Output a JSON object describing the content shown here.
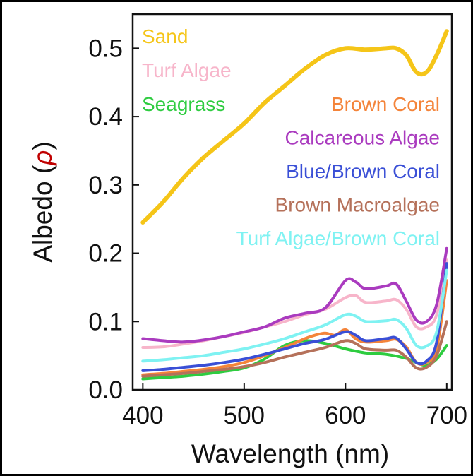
{
  "chart_data": {
    "type": "line",
    "xlabel": "Wavelength (nm)",
    "ylabel_prefix": "Albedo (",
    "ylabel_symbol": "ρ",
    "ylabel_suffix": ")",
    "ylabel_symbol_color": "#c00000",
    "xlim": [
      390,
      705
    ],
    "ylim": [
      0,
      0.55
    ],
    "xticks": [
      400,
      500,
      600,
      700
    ],
    "yticks": [
      0.0,
      0.1,
      0.2,
      0.3,
      0.4,
      0.5
    ],
    "ytick_labels": [
      "0.0",
      "0.1",
      "0.2",
      "0.3",
      "0.4",
      "0.5"
    ],
    "legend_position": "top",
    "grid": false,
    "series": [
      {
        "name": "Sand",
        "color": "#f5c518",
        "x": [
          400,
          420,
          440,
          460,
          480,
          500,
          520,
          540,
          560,
          580,
          600,
          620,
          640,
          650,
          660,
          670,
          680,
          690,
          700
        ],
        "y": [
          0.245,
          0.275,
          0.31,
          0.34,
          0.365,
          0.39,
          0.42,
          0.445,
          0.47,
          0.49,
          0.5,
          0.498,
          0.5,
          0.5,
          0.49,
          0.465,
          0.465,
          0.49,
          0.525
        ]
      },
      {
        "name": "Turf Algae",
        "color": "#f7b5ca",
        "x": [
          400,
          420,
          440,
          460,
          480,
          500,
          520,
          540,
          560,
          580,
          600,
          610,
          620,
          640,
          650,
          660,
          670,
          680,
          690,
          700
        ],
        "y": [
          0.062,
          0.063,
          0.067,
          0.072,
          0.078,
          0.084,
          0.092,
          0.1,
          0.11,
          0.118,
          0.135,
          0.138,
          0.128,
          0.13,
          0.132,
          0.118,
          0.092,
          0.092,
          0.11,
          0.19
        ]
      },
      {
        "name": "Seagrass",
        "color": "#2ecc40",
        "x": [
          400,
          420,
          440,
          460,
          480,
          500,
          520,
          540,
          560,
          580,
          600,
          620,
          640,
          660,
          670,
          680,
          690,
          700
        ],
        "y": [
          0.016,
          0.018,
          0.02,
          0.023,
          0.027,
          0.032,
          0.045,
          0.065,
          0.072,
          0.068,
          0.06,
          0.054,
          0.052,
          0.046,
          0.04,
          0.036,
          0.045,
          0.065
        ]
      },
      {
        "name": "Brown Coral",
        "color": "#f4843a",
        "x": [
          400,
          420,
          440,
          460,
          480,
          500,
          520,
          540,
          560,
          570,
          580,
          590,
          600,
          610,
          620,
          640,
          650,
          660,
          670,
          680,
          690,
          700
        ],
        "y": [
          0.022,
          0.024,
          0.027,
          0.03,
          0.034,
          0.04,
          0.05,
          0.062,
          0.075,
          0.08,
          0.083,
          0.08,
          0.088,
          0.075,
          0.07,
          0.072,
          0.074,
          0.063,
          0.04,
          0.04,
          0.06,
          0.16
        ]
      },
      {
        "name": "Calcareous Algae",
        "color": "#aa3bbf",
        "x": [
          400,
          420,
          440,
          460,
          480,
          500,
          520,
          540,
          560,
          580,
          600,
          610,
          620,
          640,
          650,
          660,
          670,
          680,
          690,
          700
        ],
        "y": [
          0.075,
          0.072,
          0.07,
          0.073,
          0.078,
          0.085,
          0.092,
          0.105,
          0.112,
          0.12,
          0.16,
          0.158,
          0.148,
          0.152,
          0.155,
          0.13,
          0.102,
          0.1,
          0.125,
          0.207
        ]
      },
      {
        "name": "Blue/Brown Coral",
        "color": "#3a4fd6",
        "x": [
          400,
          420,
          440,
          460,
          480,
          500,
          520,
          540,
          560,
          580,
          600,
          610,
          620,
          640,
          650,
          660,
          670,
          680,
          690,
          700
        ],
        "y": [
          0.028,
          0.03,
          0.033,
          0.036,
          0.04,
          0.045,
          0.052,
          0.06,
          0.068,
          0.074,
          0.085,
          0.08,
          0.072,
          0.075,
          0.076,
          0.06,
          0.04,
          0.042,
          0.07,
          0.185
        ]
      },
      {
        "name": "Brown Macroalgae",
        "color": "#b5715a",
        "x": [
          400,
          420,
          440,
          460,
          480,
          500,
          520,
          540,
          560,
          580,
          600,
          610,
          620,
          640,
          650,
          660,
          670,
          680,
          690,
          700
        ],
        "y": [
          0.02,
          0.022,
          0.024,
          0.027,
          0.03,
          0.034,
          0.04,
          0.048,
          0.055,
          0.062,
          0.072,
          0.068,
          0.06,
          0.058,
          0.058,
          0.048,
          0.032,
          0.033,
          0.05,
          0.1
        ]
      },
      {
        "name": "Turf Algae/Brown Coral",
        "color": "#7ff2f2",
        "x": [
          400,
          420,
          440,
          460,
          480,
          500,
          520,
          540,
          560,
          580,
          600,
          610,
          620,
          640,
          650,
          660,
          670,
          680,
          690,
          700
        ],
        "y": [
          0.042,
          0.044,
          0.047,
          0.05,
          0.055,
          0.06,
          0.067,
          0.075,
          0.085,
          0.095,
          0.11,
          0.108,
          0.1,
          0.101,
          0.103,
          0.09,
          0.065,
          0.064,
          0.085,
          0.175
        ]
      }
    ]
  }
}
